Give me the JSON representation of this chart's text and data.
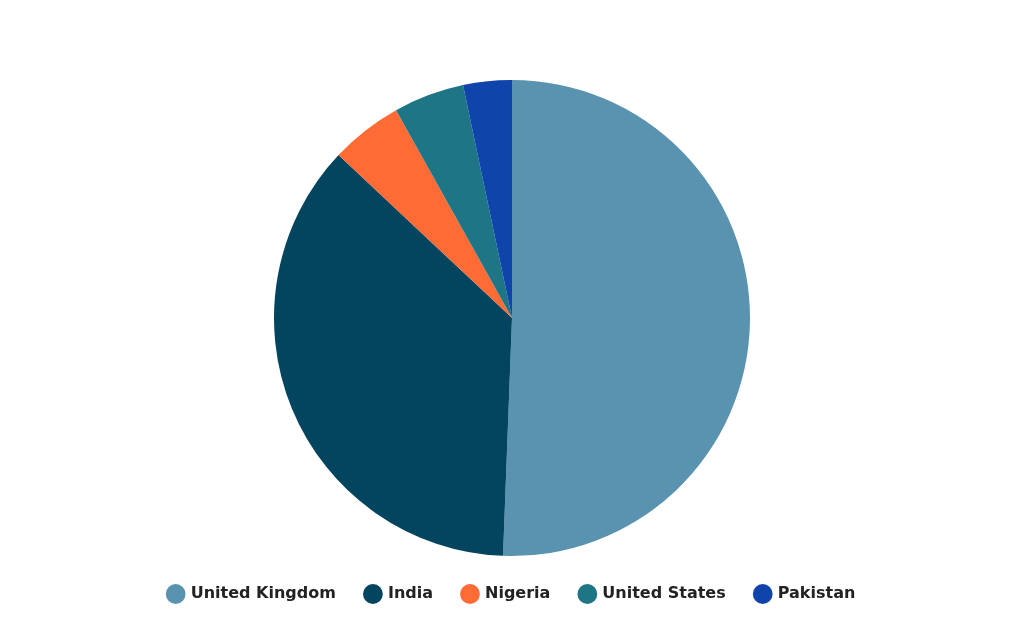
{
  "chart_data": {
    "type": "pie",
    "categories": [
      "United Kingdom",
      "India",
      "Nigeria",
      "United States",
      "Pakistan"
    ],
    "values": [
      50.6,
      36.4,
      4.9,
      4.8,
      3.3
    ],
    "colors": [
      "#5a93b0",
      "#03445e",
      "#ff6b35",
      "#1d7585",
      "#0f44ab"
    ],
    "legend": "bottom"
  }
}
